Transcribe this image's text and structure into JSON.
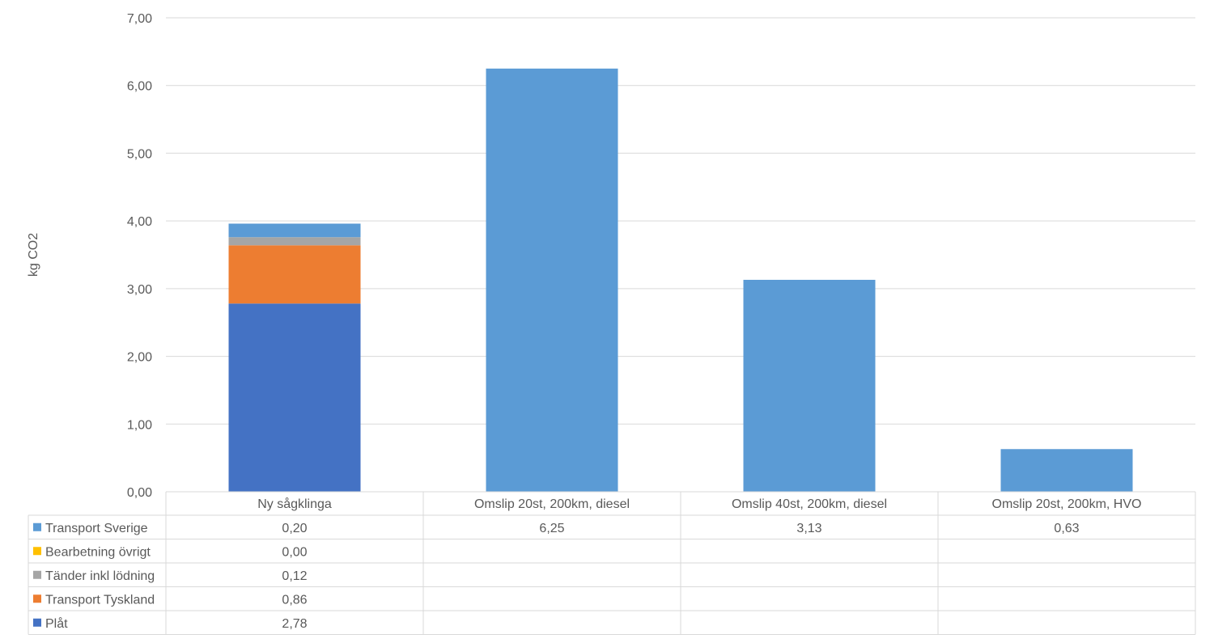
{
  "chart_data": {
    "type": "bar",
    "stacked": true,
    "title": "",
    "xlabel": "",
    "ylabel": "kg CO2",
    "ylim": [
      0,
      7
    ],
    "yticks": [
      "0,00",
      "1,00",
      "2,00",
      "3,00",
      "4,00",
      "5,00",
      "6,00",
      "7,00"
    ],
    "grid": true,
    "legend": "data-table-below",
    "categories": [
      "Ny sågklinga",
      "Omslip 20st, 200km, diesel",
      "Omslip 40st, 200km, diesel",
      "Omslip 20st, 200km, HVO"
    ],
    "series": [
      {
        "name": "Plåt",
        "color": "#4472C4",
        "values": [
          2.78,
          null,
          null,
          null
        ],
        "labels": [
          "2,78",
          "",
          "",
          ""
        ]
      },
      {
        "name": "Transport Tyskland",
        "color": "#ED7D31",
        "values": [
          0.86,
          null,
          null,
          null
        ],
        "labels": [
          "0,86",
          "",
          "",
          ""
        ]
      },
      {
        "name": "Tänder inkl lödning",
        "color": "#A5A5A5",
        "values": [
          0.12,
          null,
          null,
          null
        ],
        "labels": [
          "0,12",
          "",
          "",
          ""
        ]
      },
      {
        "name": "Bearbetning övrigt",
        "color": "#FFC000",
        "values": [
          0.0,
          null,
          null,
          null
        ],
        "labels": [
          "0,00",
          "",
          "",
          ""
        ]
      },
      {
        "name": "Transport Sverige",
        "color": "#5B9BD5",
        "values": [
          0.2,
          6.25,
          3.13,
          0.63
        ],
        "labels": [
          "0,20",
          "6,25",
          "3,13",
          "0,63"
        ]
      }
    ]
  }
}
